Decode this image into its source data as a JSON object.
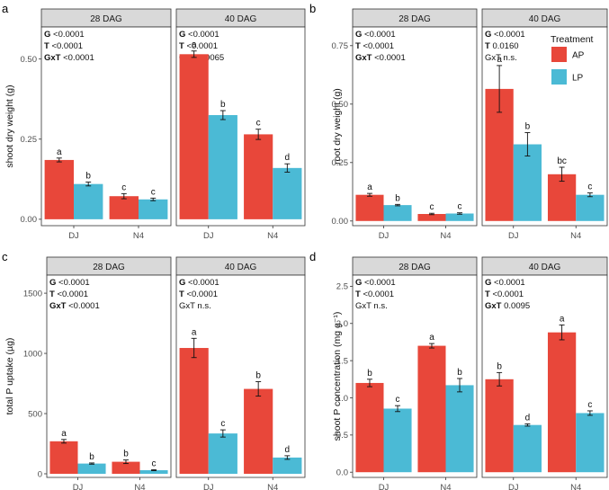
{
  "legend": {
    "title": "Treatment",
    "items": [
      {
        "label": "AP",
        "color": "#E8473A"
      },
      {
        "label": "LP",
        "color": "#4BBAD5"
      }
    ]
  },
  "chart_data": [
    {
      "letter": "a",
      "type": "bar",
      "ylabel": "shoot dry weight (g)",
      "ylim": [
        -0.02,
        0.6
      ],
      "yticks": [
        0.0,
        0.25,
        0.5
      ],
      "ytick_labels": [
        "0.00",
        "0.25",
        "0.50"
      ],
      "categories": [
        "DJ",
        "N4"
      ],
      "facets": [
        {
          "label": "28 DAG",
          "stats": [
            [
              "G",
              "<0.0001",
              true
            ],
            [
              "T",
              "<0.0001",
              true
            ],
            [
              "GxT",
              "<0.0001",
              true
            ]
          ],
          "series": [
            {
              "name": "AP",
              "values": [
                0.185,
                0.072
              ],
              "err": [
                0.006,
                0.008
              ],
              "letters": [
                "a",
                "c"
              ]
            },
            {
              "name": "LP",
              "values": [
                0.11,
                0.062
              ],
              "err": [
                0.006,
                0.004
              ],
              "letters": [
                "b",
                "c"
              ]
            }
          ]
        },
        {
          "label": "40 DAG",
          "stats": [
            [
              "G",
              "<0.0001",
              true
            ],
            [
              "T",
              "<0.0001",
              true
            ],
            [
              "GxT",
              "0.0065",
              true
            ]
          ],
          "series": [
            {
              "name": "AP",
              "values": [
                0.515,
                0.265
              ],
              "err": [
                0.01,
                0.016
              ],
              "letters": [
                "a",
                "c"
              ]
            },
            {
              "name": "LP",
              "values": [
                0.325,
                0.16
              ],
              "err": [
                0.014,
                0.013
              ],
              "letters": [
                "b",
                "d"
              ]
            }
          ]
        }
      ]
    },
    {
      "letter": "b",
      "type": "bar",
      "ylabel": "root dry weight (g)",
      "ylim": [
        -0.02,
        0.83
      ],
      "yticks": [
        0.0,
        0.25,
        0.5,
        0.75
      ],
      "ytick_labels": [
        "0.00",
        "0.25",
        "0.50",
        "0.75"
      ],
      "categories": [
        "DJ",
        "N4"
      ],
      "facets": [
        {
          "label": "28 DAG",
          "stats": [
            [
              "G",
              "<0.0001",
              true
            ],
            [
              "T",
              "<0.0001",
              true
            ],
            [
              "GxT",
              "<0.0001",
              true
            ]
          ],
          "series": [
            {
              "name": "AP",
              "values": [
                0.112,
                0.03
              ],
              "err": [
                0.006,
                0.003
              ],
              "letters": [
                "a",
                "c"
              ]
            },
            {
              "name": "LP",
              "values": [
                0.068,
                0.032
              ],
              "err": [
                0.003,
                0.003
              ],
              "letters": [
                "b",
                "c"
              ]
            }
          ]
        },
        {
          "label": "40 DAG",
          "stats": [
            [
              "G",
              "<0.0001",
              true
            ],
            [
              "T",
              "0.0160",
              true
            ],
            [
              "GxT",
              "n.s.",
              false
            ]
          ],
          "series": [
            {
              "name": "AP",
              "values": [
                0.565,
                0.2
              ],
              "err": [
                0.1,
                0.03
              ],
              "letters": [
                "a",
                "bc"
              ]
            },
            {
              "name": "LP",
              "values": [
                0.328,
                0.112
              ],
              "err": [
                0.05,
                0.008
              ],
              "letters": [
                "b",
                "c"
              ]
            }
          ]
        }
      ]
    },
    {
      "letter": "c",
      "type": "bar",
      "ylabel": "total P uptake (µg)",
      "ylim": [
        -30,
        1650
      ],
      "yticks": [
        0,
        500,
        1000,
        1500
      ],
      "ytick_labels": [
        "0",
        "500",
        "1000",
        "1500"
      ],
      "categories": [
        "DJ",
        "N4"
      ],
      "facets": [
        {
          "label": "28 DAG",
          "stats": [
            [
              "G",
              "<0.0001",
              true
            ],
            [
              "T",
              "<0.0001",
              true
            ],
            [
              "GxT",
              "<0.0001",
              true
            ]
          ],
          "series": [
            {
              "name": "AP",
              "values": [
                270,
                100
              ],
              "err": [
                15,
                15
              ],
              "letters": [
                "a",
                "b"
              ]
            },
            {
              "name": "LP",
              "values": [
                85,
                30
              ],
              "err": [
                5,
                4
              ],
              "letters": [
                "b",
                "c"
              ]
            }
          ]
        },
        {
          "label": "40 DAG",
          "stats": [
            [
              "G",
              "<0.0001",
              true
            ],
            [
              "T",
              "<0.0001",
              true
            ],
            [
              "GxT",
              "n.s.",
              false
            ]
          ],
          "series": [
            {
              "name": "AP",
              "values": [
                1045,
                705
              ],
              "err": [
                80,
                60
              ],
              "letters": [
                "a",
                "b"
              ]
            },
            {
              "name": "LP",
              "values": [
                335,
                135
              ],
              "err": [
                30,
                15
              ],
              "letters": [
                "c",
                "d"
              ]
            }
          ]
        }
      ]
    },
    {
      "letter": "d",
      "type": "bar",
      "ylabel": "shoot P concentration (mg g⁻¹)",
      "ylim": [
        -0.07,
        2.65
      ],
      "yticks": [
        0.0,
        0.5,
        1.0,
        1.5,
        2.0,
        2.5
      ],
      "ytick_labels": [
        "0.0",
        "0.5",
        "1.0",
        "1.5",
        "2.0",
        "2.5"
      ],
      "categories": [
        "DJ",
        "N4"
      ],
      "facets": [
        {
          "label": "28 DAG",
          "stats": [
            [
              "G",
              "<0.0001",
              true
            ],
            [
              "T",
              "<0.0001",
              true
            ],
            [
              "GxT",
              "n.s.",
              false
            ]
          ],
          "series": [
            {
              "name": "AP",
              "values": [
                1.2,
                1.7
              ],
              "err": [
                0.05,
                0.03
              ],
              "letters": [
                "b",
                "a"
              ]
            },
            {
              "name": "LP",
              "values": [
                0.855,
                1.17
              ],
              "err": [
                0.04,
                0.09
              ],
              "letters": [
                "c",
                "b"
              ]
            }
          ]
        },
        {
          "label": "40 DAG",
          "stats": [
            [
              "G",
              "<0.0001",
              true
            ],
            [
              "T",
              "<0.0001",
              true
            ],
            [
              "GxT",
              "0.0095",
              true
            ]
          ],
          "series": [
            {
              "name": "AP",
              "values": [
                1.25,
                1.88
              ],
              "err": [
                0.09,
                0.1
              ],
              "letters": [
                "b",
                "a"
              ]
            },
            {
              "name": "LP",
              "values": [
                0.635,
                0.795
              ],
              "err": [
                0.015,
                0.03
              ],
              "letters": [
                "d",
                "c"
              ]
            }
          ]
        }
      ]
    }
  ]
}
